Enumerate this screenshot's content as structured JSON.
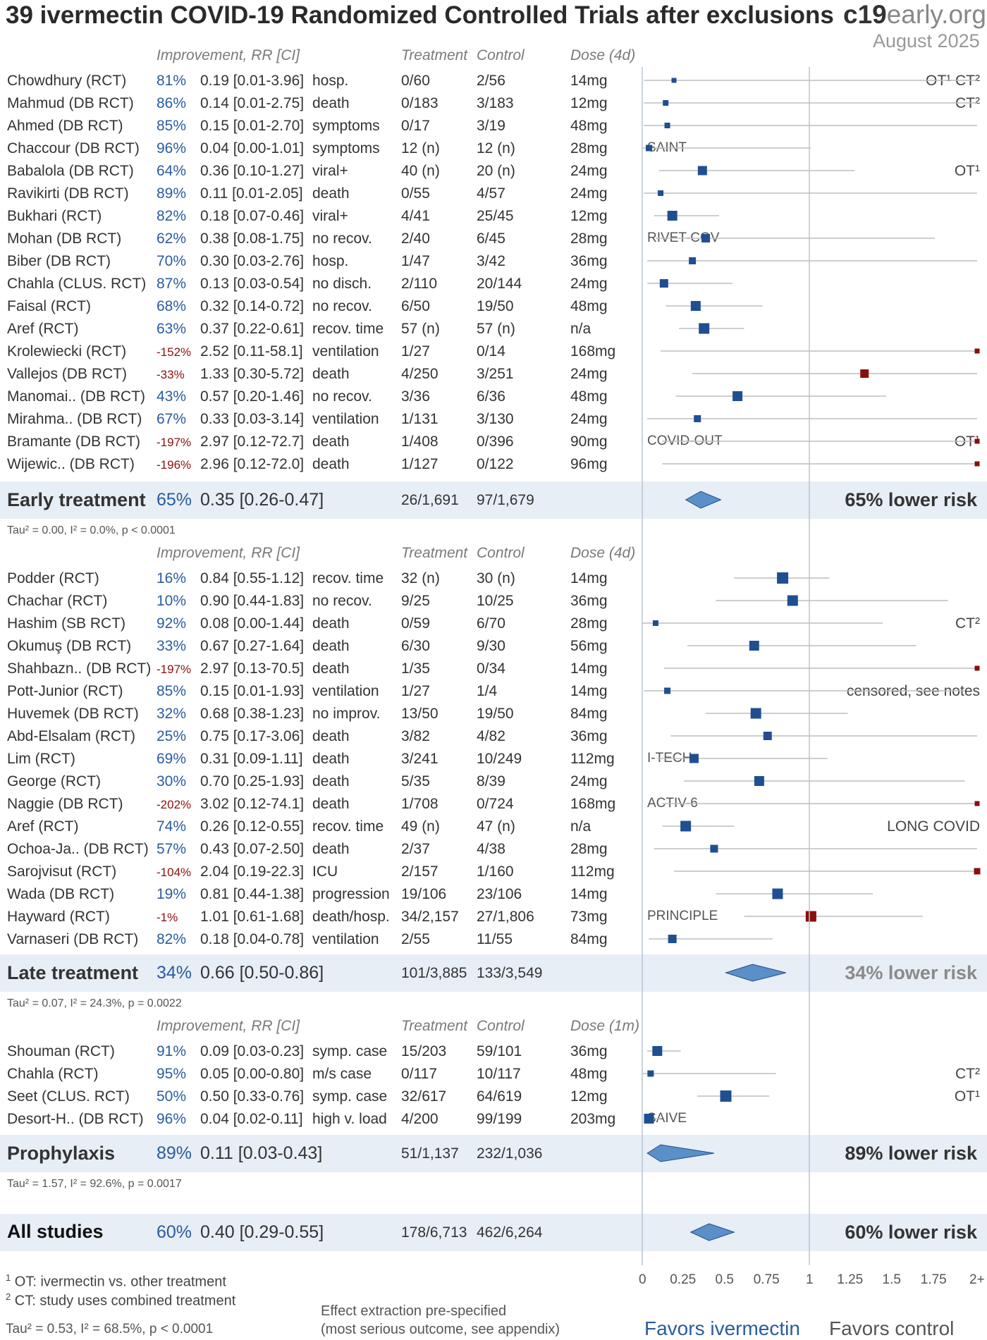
{
  "title": "39 ivermectin COVID-19 Randomized Controlled Trials after exclusions",
  "brand_bold": "c19",
  "brand_rest": "early.org",
  "date": "August 2025",
  "colors": {
    "blue": "#1f4f91",
    "red": "#8b0d0d",
    "band": "#e8eef6",
    "diamond": "#5b8fc7"
  },
  "column_headers": {
    "improvement": "Improvement, RR [CI]",
    "treatment": "Treatment",
    "control": "Control",
    "dose_4d": "Dose (4d)",
    "dose_1m": "Dose (1m)"
  },
  "chart_data": {
    "type": "forest",
    "x_axis": {
      "ticks": [
        "0",
        "0.25",
        "0.5",
        "0.75",
        "1",
        "1.25",
        "1.5",
        "1.75",
        "2+"
      ],
      "range": [
        0,
        2
      ]
    },
    "groups": [
      {
        "name": "Early treatment",
        "dose_header": "Dose (4d)",
        "studies": [
          {
            "study": "Chowdhury (RCT)",
            "improvement": "81%",
            "rr": 0.19,
            "lo": 0.01,
            "hi": 3.96,
            "rr_text": "0.19 [0.01-3.96]",
            "outcome": "hosp.",
            "treatment": "0/60",
            "control": "2/56",
            "dose": "14mg",
            "note": "",
            "tag": "OT¹ CT²"
          },
          {
            "study": "Mahmud (DB RCT)",
            "improvement": "86%",
            "rr": 0.14,
            "lo": 0.01,
            "hi": 2.75,
            "rr_text": "0.14 [0.01-2.75]",
            "outcome": "death",
            "treatment": "0/183",
            "control": "3/183",
            "dose": "12mg",
            "note": "",
            "tag": "CT²"
          },
          {
            "study": "Ahmed (DB RCT)",
            "improvement": "85%",
            "rr": 0.15,
            "lo": 0.01,
            "hi": 2.7,
            "rr_text": "0.15 [0.01-2.70]",
            "outcome": "symptoms",
            "treatment": "0/17",
            "control": "3/19",
            "dose": "48mg",
            "note": "",
            "tag": ""
          },
          {
            "study": "Chaccour (DB RCT)",
            "improvement": "96%",
            "rr": 0.04,
            "lo": 0.0,
            "hi": 1.01,
            "rr_text": "0.04 [0.00-1.01]",
            "outcome": "symptoms",
            "treatment": "12 (n)",
            "control": "12 (n)",
            "dose": "28mg",
            "note": "SAINT",
            "tag": ""
          },
          {
            "study": "Babalola (DB RCT)",
            "improvement": "64%",
            "rr": 0.36,
            "lo": 0.1,
            "hi": 1.27,
            "rr_text": "0.36 [0.10-1.27]",
            "outcome": "viral+",
            "treatment": "40 (n)",
            "control": "20 (n)",
            "dose": "24mg",
            "note": "",
            "tag": "OT¹"
          },
          {
            "study": "Ravikirti (DB RCT)",
            "improvement": "89%",
            "rr": 0.11,
            "lo": 0.01,
            "hi": 2.05,
            "rr_text": "0.11 [0.01-2.05]",
            "outcome": "death",
            "treatment": "0/55",
            "control": "4/57",
            "dose": "24mg",
            "note": "",
            "tag": ""
          },
          {
            "study": "Bukhari (RCT)",
            "improvement": "82%",
            "rr": 0.18,
            "lo": 0.07,
            "hi": 0.46,
            "rr_text": "0.18 [0.07-0.46]",
            "outcome": "viral+",
            "treatment": "4/41",
            "control": "25/45",
            "dose": "12mg",
            "note": "",
            "tag": ""
          },
          {
            "study": "Mohan (DB RCT)",
            "improvement": "62%",
            "rr": 0.38,
            "lo": 0.08,
            "hi": 1.75,
            "rr_text": "0.38 [0.08-1.75]",
            "outcome": "no recov.",
            "treatment": "2/40",
            "control": "6/45",
            "dose": "28mg",
            "note": "RIVET-COV",
            "tag": ""
          },
          {
            "study": "Biber (DB RCT)",
            "improvement": "70%",
            "rr": 0.3,
            "lo": 0.03,
            "hi": 2.76,
            "rr_text": "0.30 [0.03-2.76]",
            "outcome": "hosp.",
            "treatment": "1/47",
            "control": "3/42",
            "dose": "36mg",
            "note": "",
            "tag": ""
          },
          {
            "study": "Chahla (CLUS. RCT)",
            "improvement": "87%",
            "rr": 0.13,
            "lo": 0.03,
            "hi": 0.54,
            "rr_text": "0.13 [0.03-0.54]",
            "outcome": "no disch.",
            "treatment": "2/110",
            "control": "20/144",
            "dose": "24mg",
            "note": "",
            "tag": ""
          },
          {
            "study": "Faisal (RCT)",
            "improvement": "68%",
            "rr": 0.32,
            "lo": 0.14,
            "hi": 0.72,
            "rr_text": "0.32 [0.14-0.72]",
            "outcome": "no recov.",
            "treatment": "6/50",
            "control": "19/50",
            "dose": "48mg",
            "note": "",
            "tag": ""
          },
          {
            "study": "Aref (RCT)",
            "improvement": "63%",
            "rr": 0.37,
            "lo": 0.22,
            "hi": 0.61,
            "rr_text": "0.37 [0.22-0.61]",
            "outcome": "recov. time",
            "treatment": "57 (n)",
            "control": "57 (n)",
            "dose": "n/a",
            "note": "",
            "tag": ""
          },
          {
            "study": "Krolewiecki (RCT)",
            "improvement": "-152%",
            "rr": 2.52,
            "lo": 0.11,
            "hi": 58.1,
            "rr_text": "2.52 [0.11-58.1]",
            "outcome": "ventilation",
            "treatment": "1/27",
            "control": "0/14",
            "dose": "168mg",
            "note": "",
            "tag": ""
          },
          {
            "study": "Vallejos (DB RCT)",
            "improvement": "-33%",
            "rr": 1.33,
            "lo": 0.3,
            "hi": 5.72,
            "rr_text": "1.33 [0.30-5.72]",
            "outcome": "death",
            "treatment": "4/250",
            "control": "3/251",
            "dose": "24mg",
            "note": "",
            "tag": ""
          },
          {
            "study": "Manomai.. (DB RCT)",
            "improvement": "43%",
            "rr": 0.57,
            "lo": 0.2,
            "hi": 1.46,
            "rr_text": "0.57 [0.20-1.46]",
            "outcome": "no recov.",
            "treatment": "3/36",
            "control": "6/36",
            "dose": "48mg",
            "note": "",
            "tag": ""
          },
          {
            "study": "Mirahma.. (DB RCT)",
            "improvement": "67%",
            "rr": 0.33,
            "lo": 0.03,
            "hi": 3.14,
            "rr_text": "0.33 [0.03-3.14]",
            "outcome": "ventilation",
            "treatment": "1/131",
            "control": "3/130",
            "dose": "24mg",
            "note": "",
            "tag": ""
          },
          {
            "study": "Bramante (DB RCT)",
            "improvement": "-197%",
            "rr": 2.97,
            "lo": 0.12,
            "hi": 72.7,
            "rr_text": "2.97 [0.12-72.7]",
            "outcome": "death",
            "treatment": "1/408",
            "control": "0/396",
            "dose": "90mg",
            "note": "COVID-OUT",
            "tag": "OT¹"
          },
          {
            "study": "Wijewic.. (DB RCT)",
            "improvement": "-196%",
            "rr": 2.96,
            "lo": 0.12,
            "hi": 72.0,
            "rr_text": "2.96 [0.12-72.0]",
            "outcome": "death",
            "treatment": "1/127",
            "control": "0/122",
            "dose": "96mg",
            "note": "",
            "tag": ""
          }
        ],
        "summary": {
          "improvement": "65%",
          "rr": 0.35,
          "lo": 0.26,
          "hi": 0.47,
          "rr_text": "0.35 [0.26-0.47]",
          "treatment": "26/1,691",
          "control": "97/1,679",
          "risk_text": "65% lower risk"
        },
        "heterogeneity": "Tau² = 0.00, I² = 0.0%, p < 0.0001"
      },
      {
        "name": "Late treatment",
        "dose_header": "Dose (4d)",
        "studies": [
          {
            "study": "Podder (RCT)",
            "improvement": "16%",
            "rr": 0.84,
            "lo": 0.55,
            "hi": 1.12,
            "rr_text": "0.84 [0.55-1.12]",
            "outcome": "recov. time",
            "treatment": "32 (n)",
            "control": "30 (n)",
            "dose": "14mg",
            "note": "",
            "tag": ""
          },
          {
            "study": "Chachar (RCT)",
            "improvement": "10%",
            "rr": 0.9,
            "lo": 0.44,
            "hi": 1.83,
            "rr_text": "0.90 [0.44-1.83]",
            "outcome": "no recov.",
            "treatment": "9/25",
            "control": "10/25",
            "dose": "36mg",
            "note": "",
            "tag": ""
          },
          {
            "study": "Hashim (SB RCT)",
            "improvement": "92%",
            "rr": 0.08,
            "lo": 0.0,
            "hi": 1.44,
            "rr_text": "0.08 [0.00-1.44]",
            "outcome": "death",
            "treatment": "0/59",
            "control": "6/70",
            "dose": "28mg",
            "note": "",
            "tag": "CT²"
          },
          {
            "study": "Okumuş (DB RCT)",
            "improvement": "33%",
            "rr": 0.67,
            "lo": 0.27,
            "hi": 1.64,
            "rr_text": "0.67 [0.27-1.64]",
            "outcome": "death",
            "treatment": "6/30",
            "control": "9/30",
            "dose": "56mg",
            "note": "",
            "tag": ""
          },
          {
            "study": "Shahbazn.. (DB RCT)",
            "improvement": "-197%",
            "rr": 2.97,
            "lo": 0.13,
            "hi": 70.5,
            "rr_text": "2.97 [0.13-70.5]",
            "outcome": "death",
            "treatment": "1/35",
            "control": "0/34",
            "dose": "14mg",
            "note": "",
            "tag": ""
          },
          {
            "study": "Pott-Junior (RCT)",
            "improvement": "85%",
            "rr": 0.15,
            "lo": 0.01,
            "hi": 1.93,
            "rr_text": "0.15 [0.01-1.93]",
            "outcome": "ventilation",
            "treatment": "1/27",
            "control": "1/4",
            "dose": "14mg",
            "note": "",
            "tag": "censored, see notes"
          },
          {
            "study": "Huvemek (DB RCT)",
            "improvement": "32%",
            "rr": 0.68,
            "lo": 0.38,
            "hi": 1.23,
            "rr_text": "0.68 [0.38-1.23]",
            "outcome": "no improv.",
            "treatment": "13/50",
            "control": "19/50",
            "dose": "84mg",
            "note": "",
            "tag": ""
          },
          {
            "study": "Abd-Elsalam (RCT)",
            "improvement": "25%",
            "rr": 0.75,
            "lo": 0.17,
            "hi": 3.06,
            "rr_text": "0.75 [0.17-3.06]",
            "outcome": "death",
            "treatment": "3/82",
            "control": "4/82",
            "dose": "36mg",
            "note": "",
            "tag": ""
          },
          {
            "study": "Lim (RCT)",
            "improvement": "69%",
            "rr": 0.31,
            "lo": 0.09,
            "hi": 1.11,
            "rr_text": "0.31 [0.09-1.11]",
            "outcome": "death",
            "treatment": "3/241",
            "control": "10/249",
            "dose": "112mg",
            "note": "I-TECH",
            "tag": ""
          },
          {
            "study": "George (RCT)",
            "improvement": "30%",
            "rr": 0.7,
            "lo": 0.25,
            "hi": 1.93,
            "rr_text": "0.70 [0.25-1.93]",
            "outcome": "death",
            "treatment": "5/35",
            "control": "8/39",
            "dose": "24mg",
            "note": "",
            "tag": ""
          },
          {
            "study": "Naggie (DB RCT)",
            "improvement": "-202%",
            "rr": 3.02,
            "lo": 0.12,
            "hi": 74.1,
            "rr_text": "3.02 [0.12-74.1]",
            "outcome": "death",
            "treatment": "1/708",
            "control": "0/724",
            "dose": "168mg",
            "note": "ACTIV-6",
            "tag": ""
          },
          {
            "study": "Aref (RCT)",
            "improvement": "74%",
            "rr": 0.26,
            "lo": 0.12,
            "hi": 0.55,
            "rr_text": "0.26 [0.12-0.55]",
            "outcome": "recov. time",
            "treatment": "49 (n)",
            "control": "47 (n)",
            "dose": "n/a",
            "note": "",
            "tag": "LONG COVID"
          },
          {
            "study": "Ochoa-Ja.. (DB RCT)",
            "improvement": "57%",
            "rr": 0.43,
            "lo": 0.07,
            "hi": 2.5,
            "rr_text": "0.43 [0.07-2.50]",
            "outcome": "death",
            "treatment": "2/37",
            "control": "4/38",
            "dose": "28mg",
            "note": "",
            "tag": ""
          },
          {
            "study": "Sarojvisut (RCT)",
            "improvement": "-104%",
            "rr": 2.04,
            "lo": 0.19,
            "hi": 22.3,
            "rr_text": "2.04 [0.19-22.3]",
            "outcome": "ICU",
            "treatment": "2/157",
            "control": "1/160",
            "dose": "112mg",
            "note": "",
            "tag": ""
          },
          {
            "study": "Wada (DB RCT)",
            "improvement": "19%",
            "rr": 0.81,
            "lo": 0.44,
            "hi": 1.38,
            "rr_text": "0.81 [0.44-1.38]",
            "outcome": "progression",
            "treatment": "19/106",
            "control": "23/106",
            "dose": "14mg",
            "note": "",
            "tag": ""
          },
          {
            "study": "Hayward (RCT)",
            "improvement": "-1%",
            "rr": 1.01,
            "lo": 0.61,
            "hi": 1.68,
            "rr_text": "1.01 [0.61-1.68]",
            "outcome": "death/hosp.",
            "treatment": "34/2,157",
            "control": "27/1,806",
            "dose": "73mg",
            "note": "PRINCIPLE",
            "tag": ""
          },
          {
            "study": "Varnaseri (DB RCT)",
            "improvement": "82%",
            "rr": 0.18,
            "lo": 0.04,
            "hi": 0.78,
            "rr_text": "0.18 [0.04-0.78]",
            "outcome": "ventilation",
            "treatment": "2/55",
            "control": "11/55",
            "dose": "84mg",
            "note": "",
            "tag": ""
          }
        ],
        "summary": {
          "improvement": "34%",
          "rr": 0.66,
          "lo": 0.5,
          "hi": 0.86,
          "rr_text": "0.66 [0.50-0.86]",
          "treatment": "101/3,885",
          "control": "133/3,549",
          "risk_text": "34% lower risk"
        },
        "heterogeneity": "Tau² = 0.07, I² = 24.3%, p = 0.0022"
      },
      {
        "name": "Prophylaxis",
        "dose_header": "Dose (1m)",
        "studies": [
          {
            "study": "Shouman (RCT)",
            "improvement": "91%",
            "rr": 0.09,
            "lo": 0.03,
            "hi": 0.23,
            "rr_text": "0.09 [0.03-0.23]",
            "outcome": "symp. case",
            "treatment": "15/203",
            "control": "59/101",
            "dose": "36mg",
            "note": "",
            "tag": ""
          },
          {
            "study": "Chahla (RCT)",
            "improvement": "95%",
            "rr": 0.05,
            "lo": 0.0,
            "hi": 0.8,
            "rr_text": "0.05 [0.00-0.80]",
            "outcome": "m/s case",
            "treatment": "0/117",
            "control": "10/117",
            "dose": "48mg",
            "note": "",
            "tag": "CT²"
          },
          {
            "study": "Seet (CLUS. RCT)",
            "improvement": "50%",
            "rr": 0.5,
            "lo": 0.33,
            "hi": 0.76,
            "rr_text": "0.50 [0.33-0.76]",
            "outcome": "symp. case",
            "treatment": "32/617",
            "control": "64/619",
            "dose": "12mg",
            "note": "",
            "tag": "OT¹"
          },
          {
            "study": "Desort-H.. (DB RCT)",
            "improvement": "96%",
            "rr": 0.04,
            "lo": 0.02,
            "hi": 0.11,
            "rr_text": "0.04 [0.02-0.11]",
            "outcome": "high v. load",
            "treatment": "4/200",
            "control": "99/199",
            "dose": "203mg",
            "note": "SAIVE",
            "tag": ""
          }
        ],
        "summary": {
          "improvement": "89%",
          "rr": 0.11,
          "lo": 0.03,
          "hi": 0.43,
          "rr_text": "0.11 [0.03-0.43]",
          "treatment": "51/1,137",
          "control": "232/1,036",
          "risk_text": "89% lower risk"
        },
        "heterogeneity": "Tau² = 1.57, I² = 92.6%, p = 0.0017"
      }
    ],
    "overall": {
      "name": "All studies",
      "improvement": "60%",
      "rr": 0.4,
      "lo": 0.29,
      "hi": 0.55,
      "rr_text": "0.40 [0.29-0.55]",
      "treatment": "178/6,713",
      "control": "462/6,264",
      "risk_text": "60% lower risk",
      "heterogeneity": "Tau² = 0.53, I² = 68.5%, p < 0.0001"
    }
  },
  "footnotes": {
    "ot": "OT: ivermectin vs. other treatment",
    "ct": "CT: study uses combined treatment",
    "ot_mark": "1",
    "ct_mark": "2",
    "extraction_line1": "Effect extraction pre-specified",
    "extraction_line2": "(most serious outcome, see appendix)"
  },
  "favors": {
    "left": "Favors ivermectin",
    "right": "Favors control"
  }
}
